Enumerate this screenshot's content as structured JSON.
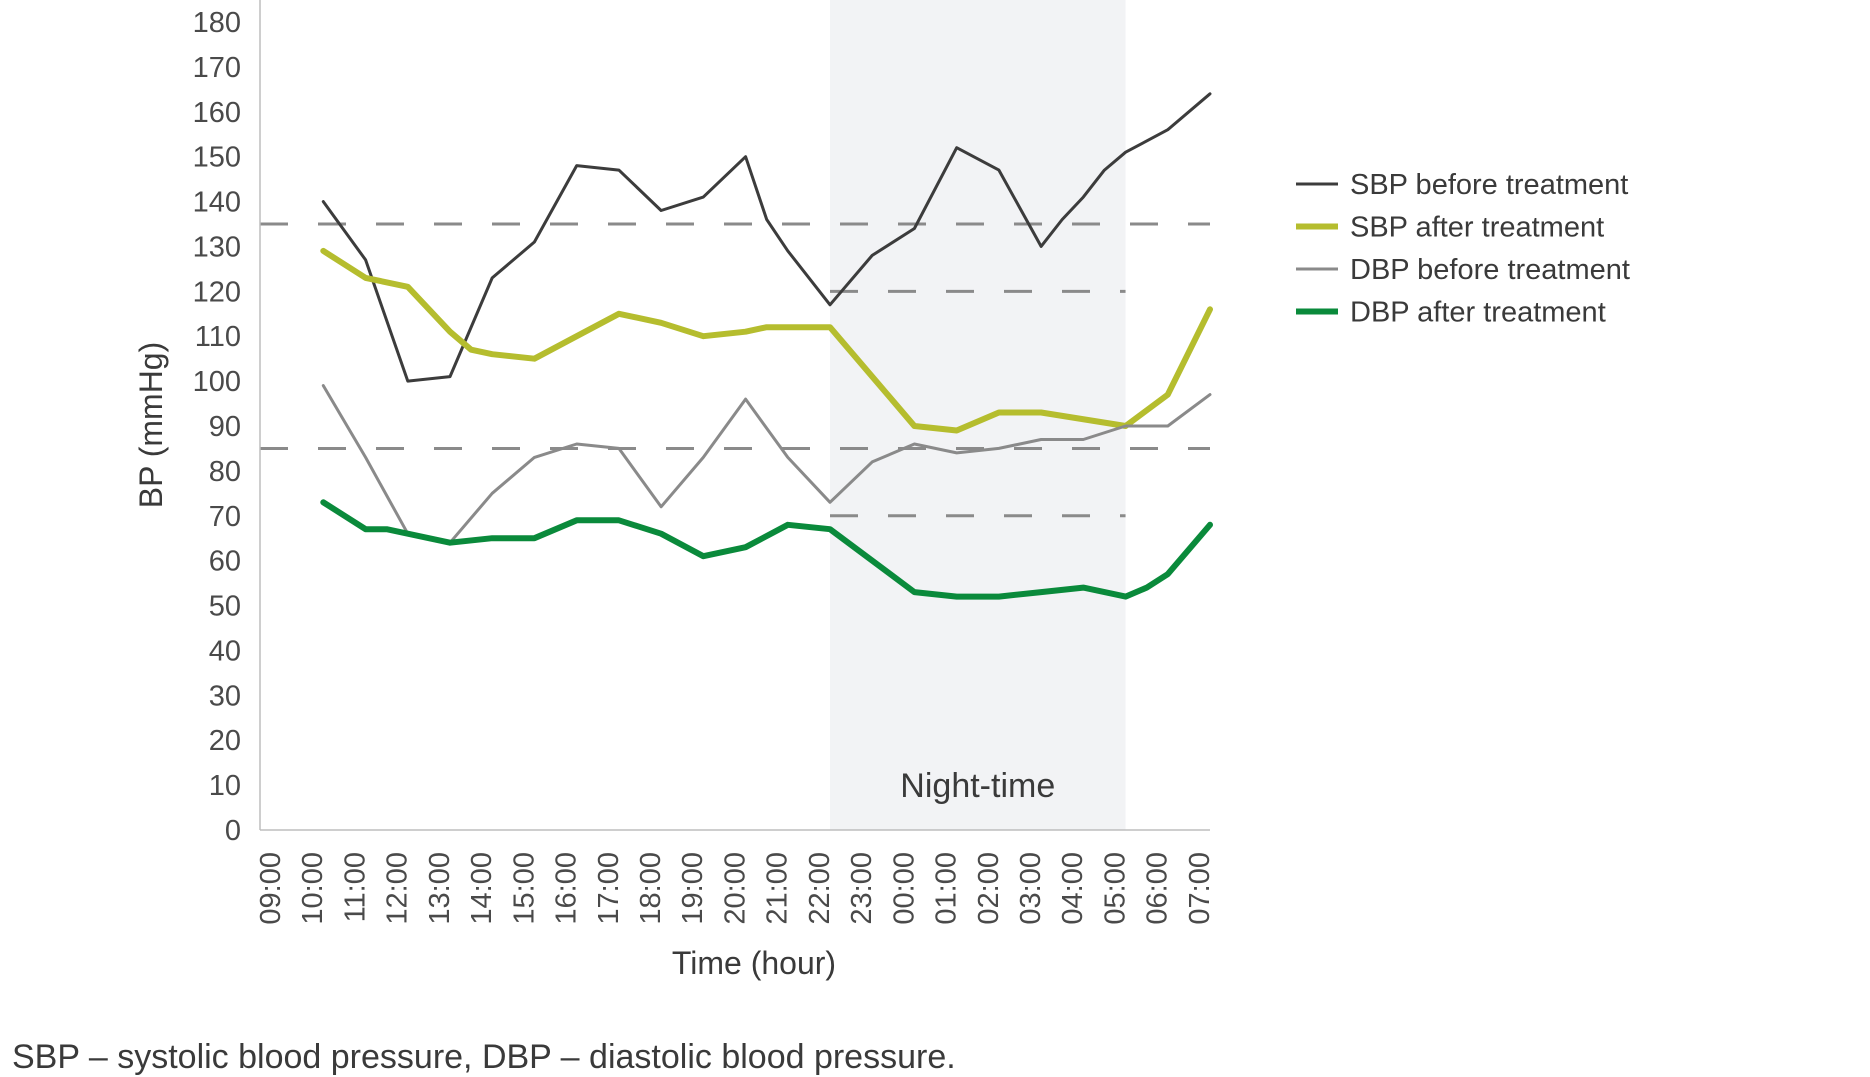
{
  "chart_data": {
    "type": "line",
    "xlabel": "Time (hour)",
    "ylabel": "BP (mmHg)",
    "ylim": [
      0,
      180
    ],
    "yticks": [
      0,
      10,
      20,
      30,
      40,
      50,
      60,
      70,
      80,
      90,
      100,
      110,
      120,
      130,
      140,
      150,
      160,
      170,
      180
    ],
    "categories": [
      "09:00",
      "10:00",
      "11:00",
      "12:00",
      "13:00",
      "14:00",
      "15:00",
      "16:00",
      "17:00",
      "18:00",
      "19:00",
      "20:00",
      "21:00",
      "22:00",
      "23:00",
      "00:00",
      "01:00",
      "02:00",
      "03:00",
      "04:00",
      "05:00",
      "06:00",
      "07:00"
    ],
    "grid": false,
    "legend_position": "right",
    "shaded_region": {
      "label": "Night-time",
      "from": "22:00",
      "to": "05:00",
      "color": "#f2f3f5"
    },
    "reference_lines": [
      {
        "value": 135,
        "from": "09:00",
        "to": "07:00",
        "style": "dashed",
        "color": "#8a8a8a"
      },
      {
        "value": 85,
        "from": "09:00",
        "to": "07:00",
        "style": "dashed",
        "color": "#8a8a8a"
      },
      {
        "value": 120,
        "from": "22:00",
        "to": "05:00",
        "style": "dashed",
        "color": "#8a8a8a"
      },
      {
        "value": 70,
        "from": "22:00",
        "to": "05:00",
        "style": "dashed",
        "color": "#8a8a8a"
      }
    ],
    "series": [
      {
        "name": "SBP before treatment",
        "color": "#3c3c3c",
        "weight": "thin",
        "points": [
          [
            "10:00",
            140
          ],
          [
            "11:00",
            127
          ],
          [
            "12:00",
            100
          ],
          [
            "13:00",
            101
          ],
          [
            "14:00",
            123
          ],
          [
            "15:00",
            131
          ],
          [
            "16:00",
            148
          ],
          [
            "17:00",
            147
          ],
          [
            "18:00",
            138
          ],
          [
            "19:00",
            141
          ],
          [
            "20:00",
            150
          ],
          [
            "20:30",
            136
          ],
          [
            "21:00",
            129
          ],
          [
            "22:00",
            117
          ],
          [
            "23:00",
            128
          ],
          [
            "00:00",
            134
          ],
          [
            "01:00",
            152
          ],
          [
            "02:00",
            147
          ],
          [
            "03:00",
            130
          ],
          [
            "03:30",
            136
          ],
          [
            "04:00",
            141
          ],
          [
            "04:30",
            147
          ],
          [
            "05:00",
            151
          ],
          [
            "06:00",
            156
          ],
          [
            "07:00",
            164
          ]
        ]
      },
      {
        "name": "SBP after treatment",
        "color": "#b5bd2e",
        "weight": "thick",
        "points": [
          [
            "10:00",
            129
          ],
          [
            "11:00",
            123
          ],
          [
            "12:00",
            121
          ],
          [
            "13:00",
            111
          ],
          [
            "13:30",
            107
          ],
          [
            "14:00",
            106
          ],
          [
            "15:00",
            105
          ],
          [
            "16:00",
            110
          ],
          [
            "17:00",
            115
          ],
          [
            "18:00",
            113
          ],
          [
            "19:00",
            110
          ],
          [
            "20:00",
            111
          ],
          [
            "20:30",
            112
          ],
          [
            "21:00",
            112
          ],
          [
            "22:00",
            112
          ],
          [
            "00:00",
            90
          ],
          [
            "01:00",
            89
          ],
          [
            "02:00",
            93
          ],
          [
            "03:00",
            93
          ],
          [
            "05:00",
            90
          ],
          [
            "06:00",
            97
          ],
          [
            "07:00",
            116
          ]
        ]
      },
      {
        "name": "DBP before treatment",
        "color": "#8a8a8a",
        "weight": "thin",
        "points": [
          [
            "10:00",
            99
          ],
          [
            "11:00",
            83
          ],
          [
            "12:00",
            66
          ],
          [
            "13:00",
            64
          ],
          [
            "14:00",
            75
          ],
          [
            "15:00",
            83
          ],
          [
            "16:00",
            86
          ],
          [
            "17:00",
            85
          ],
          [
            "18:00",
            72
          ],
          [
            "19:00",
            83
          ],
          [
            "20:00",
            96
          ],
          [
            "21:00",
            83
          ],
          [
            "22:00",
            73
          ],
          [
            "23:00",
            82
          ],
          [
            "00:00",
            86
          ],
          [
            "01:00",
            84
          ],
          [
            "02:00",
            85
          ],
          [
            "03:00",
            87
          ],
          [
            "04:00",
            87
          ],
          [
            "05:00",
            90
          ],
          [
            "06:00",
            90
          ],
          [
            "07:00",
            97
          ]
        ]
      },
      {
        "name": "DBP after treatment",
        "color": "#0a8a3b",
        "weight": "thick",
        "points": [
          [
            "10:00",
            73
          ],
          [
            "11:00",
            67
          ],
          [
            "11:30",
            67
          ],
          [
            "12:00",
            66
          ],
          [
            "13:00",
            64
          ],
          [
            "14:00",
            65
          ],
          [
            "15:00",
            65
          ],
          [
            "16:00",
            69
          ],
          [
            "17:00",
            69
          ],
          [
            "18:00",
            66
          ],
          [
            "19:00",
            61
          ],
          [
            "20:00",
            63
          ],
          [
            "21:00",
            68
          ],
          [
            "22:00",
            67
          ],
          [
            "00:00",
            53
          ],
          [
            "01:00",
            52
          ],
          [
            "02:00",
            52
          ],
          [
            "03:00",
            53
          ],
          [
            "04:00",
            54
          ],
          [
            "05:00",
            52
          ],
          [
            "05:30",
            54
          ],
          [
            "06:00",
            57
          ],
          [
            "07:00",
            68
          ]
        ]
      }
    ]
  },
  "footnote": "SBP – systolic blood pressure, DBP – diastolic blood pressure."
}
